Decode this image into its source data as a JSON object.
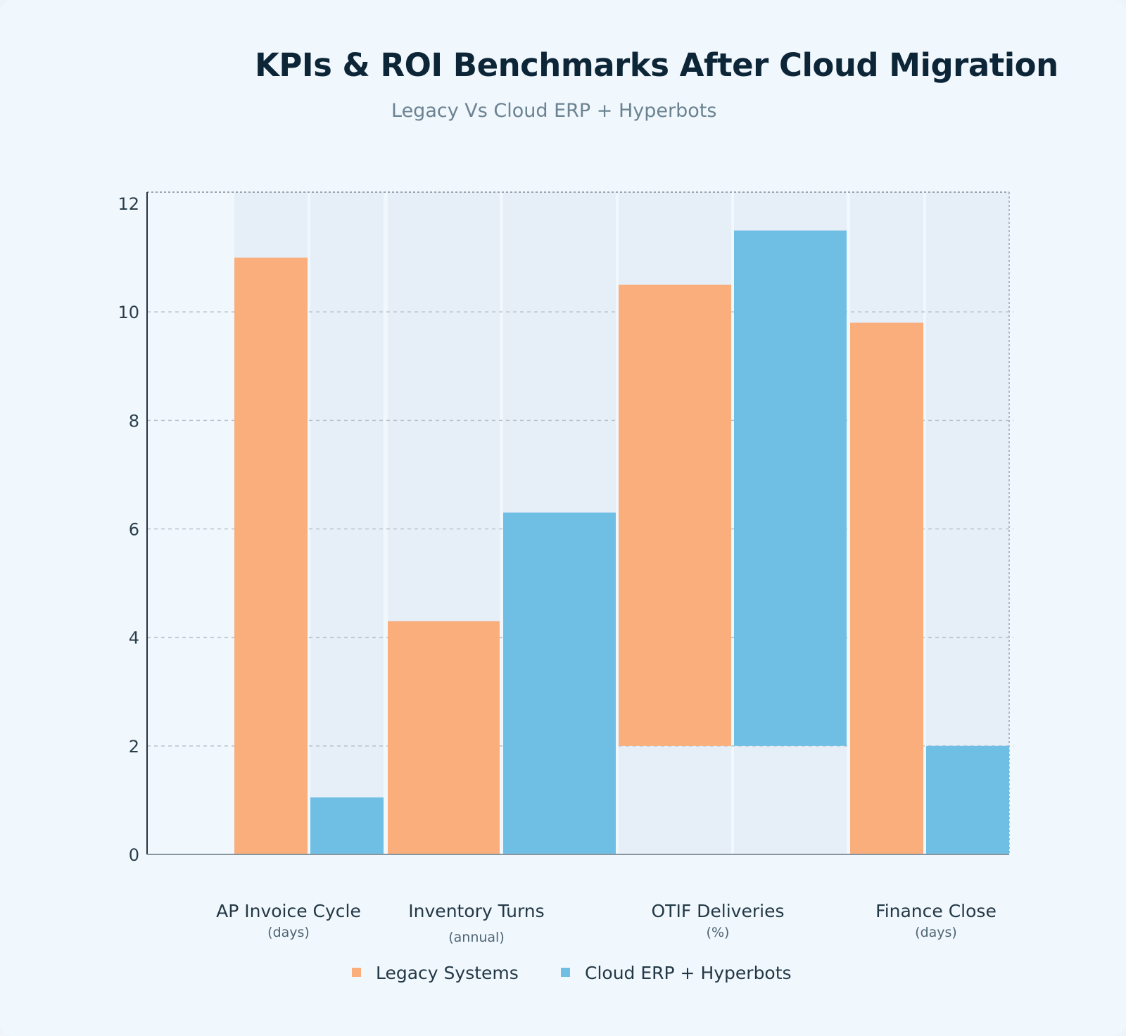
{
  "title": "KPIs & ROI Benchmarks After Cloud Migration",
  "subtitle": "Legacy Vs Cloud ERP + Hyperbots",
  "colors": {
    "legacy": "#f9ae7b",
    "cloud": "#6fbfe5",
    "band": "#e6eef8",
    "grid": "#b9c2cc",
    "axis": "#8795a1"
  },
  "chart_data": {
    "type": "bar",
    "categories": [
      {
        "label": "AP Invoice Cycle",
        "unit": "(days)"
      },
      {
        "label": "Inventory Turns",
        "unit": "(annual)"
      },
      {
        "label": "OTIF Deliveries",
        "unit": "(%)"
      },
      {
        "label": "Finance Close",
        "unit": "(days)"
      }
    ],
    "series": [
      {
        "name": "Legacy Systems",
        "values": [
          11.0,
          4.3,
          10.5,
          9.8
        ],
        "base": [
          0,
          0,
          2,
          0
        ]
      },
      {
        "name": "Cloud ERP + Hyperbots",
        "values": [
          1.05,
          6.3,
          11.5,
          2.0
        ],
        "base": [
          0,
          0,
          2,
          0
        ]
      }
    ],
    "y_ticks": [
      0,
      2,
      4,
      6,
      8,
      10,
      12
    ],
    "ylim": [
      0,
      12.5
    ],
    "grid": true,
    "legend_position": "bottom"
  }
}
